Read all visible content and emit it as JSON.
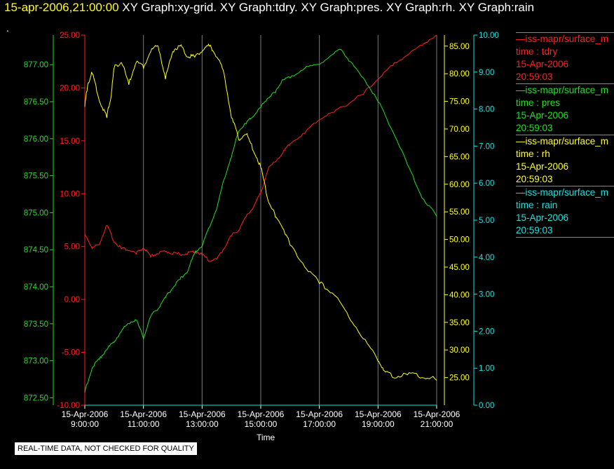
{
  "header": {
    "timestamp": "15-apr-2006,21:00:00",
    "graph_titles": [
      "XY Graph:xy-grid.",
      "XY Graph:tdry.",
      "XY Graph:pres.",
      "XY Graph:rh.",
      "XY Graph:rain"
    ],
    "dot": "."
  },
  "legend": [
    {
      "name": "—iss-mapr/surface_m",
      "field": "time : tdry",
      "date": "15-Apr-2006",
      "time": "20:59:03",
      "color": "#ff2020"
    },
    {
      "name": "—iss-mapr/surface_m",
      "field": "time : pres",
      "date": "15-Apr-2006",
      "time": "20:59:03",
      "color": "#20e020"
    },
    {
      "name": "—iss-mapr/surface_m",
      "field": "time : rh",
      "date": "15-Apr-2006",
      "time": "20:59:03",
      "color": "#ffff20"
    },
    {
      "name": "—iss-mapr/surface_m",
      "field": "time : rain",
      "date": "15-Apr-2006",
      "time": "20:59:03",
      "color": "#20e0e0"
    }
  ],
  "disclaimer": "REAL-TIME DATA, NOT CHECKED FOR QUALITY",
  "chart_data": {
    "type": "line",
    "xlabel": "Time",
    "x_ticks": [
      {
        "date": "15-Apr-2006",
        "time": "9:00:00",
        "hour": 9
      },
      {
        "date": "15-Apr-2006",
        "time": "11:00:00",
        "hour": 11
      },
      {
        "date": "15-Apr-2006",
        "time": "13:00:00",
        "hour": 13
      },
      {
        "date": "15-Apr-2006",
        "time": "15:00:00",
        "hour": 15
      },
      {
        "date": "15-Apr-2006",
        "time": "17:00:00",
        "hour": 17
      },
      {
        "date": "15-Apr-2006",
        "time": "19:00:00",
        "hour": 19
      },
      {
        "date": "15-Apr-2006",
        "time": "21:00:00",
        "hour": 21
      }
    ],
    "xlim": [
      9,
      21
    ],
    "grid": "vertical",
    "axes": [
      {
        "id": "pres",
        "color": "#20e020",
        "ylim": [
          872.4,
          877.4
        ],
        "ticks": [
          "872.50",
          "873.00",
          "873.50",
          "874.00",
          "874.50",
          "875.00",
          "875.50",
          "876.00",
          "876.50",
          "877.00"
        ]
      },
      {
        "id": "tdry",
        "color": "#ff2020",
        "ylim": [
          -10,
          25
        ],
        "ticks": [
          "-10.00",
          "-5.00",
          "0.00",
          "5.00",
          "10.00",
          "15.00",
          "20.00",
          "25.00"
        ]
      },
      {
        "id": "rh",
        "color": "#ffff20",
        "ylim": [
          20,
          87
        ],
        "ticks": [
          "25.00",
          "30.00",
          "35.00",
          "40.00",
          "45.00",
          "50.00",
          "55.00",
          "60.00",
          "65.00",
          "70.00",
          "75.00",
          "80.00",
          "85.00"
        ]
      },
      {
        "id": "rain",
        "color": "#20e0e0",
        "ylim": [
          0,
          10
        ],
        "ticks": [
          "0.00",
          "1.00",
          "2.00",
          "3.00",
          "4.00",
          "5.00",
          "6.00",
          "7.00",
          "8.00",
          "9.00",
          "10.00"
        ]
      }
    ],
    "series": [
      {
        "axis": "tdry",
        "color": "#ff2020",
        "x": [
          9.0,
          9.25,
          9.5,
          9.75,
          10.0,
          10.25,
          10.5,
          10.75,
          11.0,
          11.25,
          11.5,
          11.75,
          12.0,
          12.25,
          12.5,
          12.75,
          13.0,
          13.25,
          13.5,
          13.75,
          14.0,
          14.25,
          14.5,
          14.75,
          15.0,
          15.25,
          15.5,
          15.75,
          16.0,
          16.5,
          17.0,
          17.5,
          18.0,
          18.5,
          19.0,
          19.5,
          20.0,
          20.5,
          21.0
        ],
        "y": [
          6.2,
          4.8,
          5.2,
          7.0,
          5.4,
          4.8,
          4.6,
          4.3,
          4.8,
          4.0,
          4.3,
          4.5,
          4.3,
          4.2,
          4.3,
          4.5,
          4.2,
          3.6,
          3.8,
          4.8,
          6.0,
          6.5,
          7.8,
          8.7,
          10.0,
          12.3,
          13.0,
          13.8,
          14.7,
          15.7,
          17.0,
          17.7,
          18.5,
          19.4,
          20.8,
          22.1,
          23.1,
          24.0,
          25.0
        ]
      },
      {
        "axis": "pres",
        "color": "#20e020",
        "x": [
          9.0,
          9.25,
          9.5,
          9.75,
          10.0,
          10.25,
          10.5,
          10.75,
          11.0,
          11.25,
          11.5,
          11.75,
          12.0,
          12.25,
          12.5,
          12.75,
          13.0,
          13.25,
          13.5,
          13.75,
          14.0,
          14.25,
          14.5,
          14.75,
          15.0,
          15.25,
          15.5,
          15.75,
          16.0,
          16.5,
          17.0,
          17.5,
          17.75,
          18.0,
          18.5,
          19.0,
          19.5,
          20.0,
          20.5,
          21.0
        ],
        "y": [
          872.57,
          872.9,
          873.02,
          873.15,
          873.25,
          873.4,
          873.5,
          873.55,
          873.3,
          873.6,
          873.7,
          873.85,
          873.98,
          874.1,
          874.2,
          874.45,
          874.55,
          874.8,
          875.05,
          875.45,
          875.75,
          876.1,
          876.2,
          876.3,
          876.42,
          876.55,
          876.62,
          876.8,
          876.82,
          876.95,
          877.0,
          877.15,
          877.2,
          877.05,
          876.82,
          876.5,
          876.1,
          875.65,
          875.2,
          874.95
        ]
      },
      {
        "axis": "rh",
        "color": "#ffff20",
        "x": [
          9.0,
          9.1,
          9.25,
          9.5,
          9.75,
          9.9,
          10.0,
          10.25,
          10.5,
          10.75,
          11.0,
          11.25,
          11.5,
          11.75,
          12.0,
          12.25,
          12.5,
          12.75,
          13.0,
          13.25,
          13.5,
          13.75,
          14.0,
          14.25,
          14.5,
          14.75,
          15.0,
          15.25,
          15.5,
          15.75,
          16.0,
          16.5,
          17.0,
          17.5,
          18.0,
          18.5,
          19.0,
          19.25,
          19.5,
          20.0,
          20.5,
          21.0
        ],
        "y": [
          74,
          78,
          80,
          75,
          72,
          76,
          81,
          82,
          78,
          82,
          81,
          84,
          85,
          79,
          84,
          85,
          83,
          83,
          84,
          85,
          83,
          80,
          72,
          68,
          69,
          66,
          63,
          57,
          54,
          52,
          49,
          45,
          42,
          40,
          36,
          32,
          28,
          26,
          25,
          25.5,
          25,
          24.5
        ]
      },
      {
        "axis": "rain",
        "color": "#20e0e0",
        "x": [
          9.0,
          21.0
        ],
        "y": [
          0.0,
          0.0
        ]
      }
    ]
  }
}
